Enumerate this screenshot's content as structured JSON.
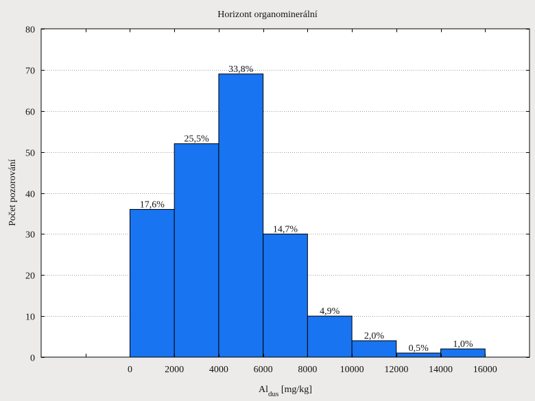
{
  "chart_data": {
    "type": "bar",
    "title": "Horizont organominerální",
    "xlabel_main": "Al",
    "xlabel_sub": "dus",
    "xlabel_unit": " [mg/kg]",
    "ylabel": "Počet pozorování",
    "bin_edges": [
      0,
      2000,
      4000,
      6000,
      8000,
      10000,
      12000,
      14000,
      16000
    ],
    "values": [
      36,
      52,
      69,
      30,
      10,
      4,
      1,
      2
    ],
    "percent_labels": [
      "17,6%",
      "25,5%",
      "33,8%",
      "14,7%",
      "4,9%",
      "2,0%",
      "0,5%",
      "1,0%"
    ],
    "xlim": [
      -4000,
      18000
    ],
    "ylim": [
      0,
      80
    ],
    "yticks": [
      0,
      10,
      20,
      30,
      40,
      50,
      60,
      70,
      80
    ],
    "xtick_labels": [
      "0",
      "2000",
      "4000",
      "6000",
      "8000",
      "10000",
      "12000",
      "14000",
      "16000"
    ],
    "grid": "horizontal dotted",
    "legend": "none",
    "bar_color": "#1874f0",
    "bar_edge_color": "#000000"
  }
}
